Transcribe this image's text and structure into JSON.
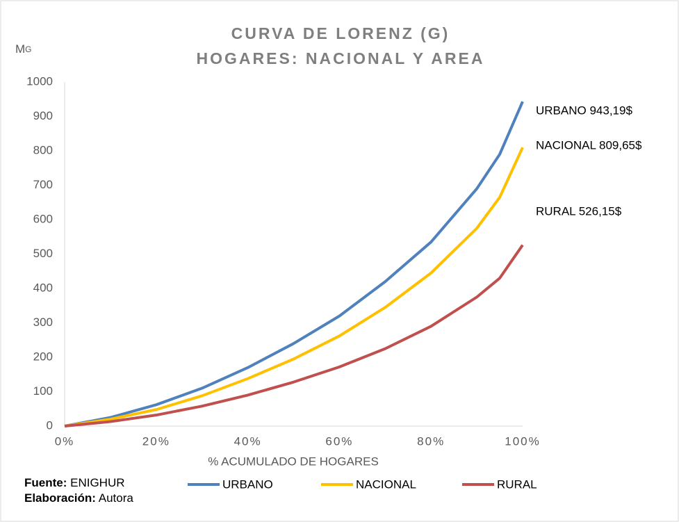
{
  "chart_data": {
    "type": "line",
    "title": [
      "CURVA DE LORENZ (G)",
      "HOGARES: NACIONAL Y AREA"
    ],
    "ylabel": {
      "main": "M",
      "sub": "G"
    },
    "xlabel": "% ACUMULADO DE HOGARES",
    "x": [
      0,
      10,
      20,
      30,
      40,
      50,
      60,
      70,
      80,
      90,
      95,
      100
    ],
    "series": [
      {
        "name": "URBANO",
        "color": "#4f81bd",
        "values": [
          0,
          25,
          62,
          110,
          170,
          240,
          320,
          420,
          535,
          690,
          790,
          943.19
        ]
      },
      {
        "name": "NACIONAL",
        "color": "#ffc000",
        "values": [
          0,
          20,
          48,
          88,
          138,
          195,
          262,
          345,
          445,
          575,
          665,
          809.65
        ]
      },
      {
        "name": "RURAL",
        "color": "#c0504d",
        "values": [
          0,
          13,
          32,
          58,
          90,
          128,
          172,
          225,
          290,
          375,
          430,
          526.15
        ]
      }
    ],
    "annotations": [
      "URBANO 943,19$",
      "NACIONAL 809,65$",
      "RURAL 526,15$"
    ],
    "xlim": [
      0,
      100
    ],
    "xticks": [
      {
        "value": 0,
        "label": "0%"
      },
      {
        "value": 20,
        "label": "20%"
      },
      {
        "value": 40,
        "label": "40%"
      },
      {
        "value": 60,
        "label": "60%"
      },
      {
        "value": 80,
        "label": "80%"
      },
      {
        "value": 100,
        "label": "100%"
      }
    ],
    "ylim": [
      0,
      1000
    ],
    "yticks": [
      0,
      100,
      200,
      300,
      400,
      500,
      600,
      700,
      800,
      900,
      1000
    ],
    "grid": false,
    "legend": "bottom",
    "source": [
      {
        "label": "Fuente:",
        "text": "ENIGHUR"
      },
      {
        "label": "Elaboración:",
        "text": "Autora"
      }
    ]
  }
}
